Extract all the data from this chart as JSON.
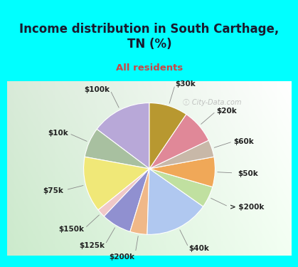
{
  "title": "Income distribution in South Carthage,\nTN (%)",
  "subtitle": "All residents",
  "title_color": "#1a1a2e",
  "subtitle_color": "#cc4444",
  "bg_cyan": "#00ffff",
  "watermark": "ⓘ City-Data.com",
  "labels": [
    "$100k",
    "$10k",
    "$75k",
    "$150k",
    "$125k",
    "$200k",
    "$40k",
    "> $200k",
    "$50k",
    "$60k",
    "$20k",
    "$30k"
  ],
  "values": [
    14,
    7,
    13,
    2,
    7,
    4,
    15,
    5,
    7,
    4,
    8,
    9
  ],
  "colors": [
    "#b8a8d8",
    "#a8c0a0",
    "#f0e878",
    "#f0c8c8",
    "#9090d0",
    "#f0b888",
    "#b0c8f0",
    "#c0e0a0",
    "#f0a858",
    "#c8b8a8",
    "#e08898",
    "#b89830"
  ],
  "label_fontsize": 7.5,
  "title_fontsize": 12,
  "subtitle_fontsize": 9.5,
  "startangle": 90
}
